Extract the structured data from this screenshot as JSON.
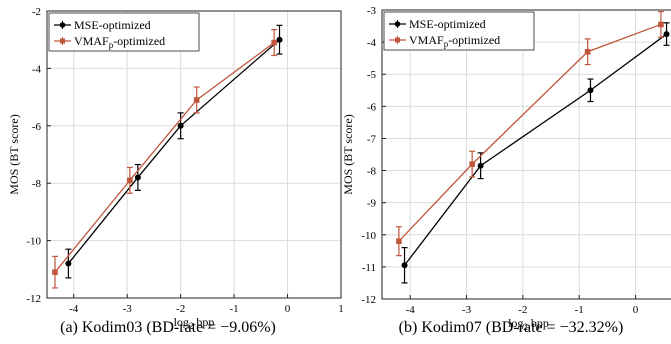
{
  "chart_data": [
    {
      "type": "line",
      "caption": "(a) Kodim03 (BD-rate = −9.06%)",
      "xlabel": "log2 bpp",
      "ylabel": "MOS (BT score)",
      "xlim": [
        -4.5,
        1
      ],
      "ylim": [
        -12,
        -2
      ],
      "xticks": [
        -4,
        -3,
        -2,
        -1,
        0,
        1
      ],
      "yticks": [
        -12,
        -10,
        -8,
        -6,
        -4,
        -2
      ],
      "grid": true,
      "legend": "top-left",
      "series": [
        {
          "name": "MSE-optimized",
          "color": "#000000",
          "marker": "circle",
          "x": [
            -4.1,
            -2.8,
            -2.0,
            -0.15
          ],
          "y": [
            -10.8,
            -7.8,
            -6.0,
            -3.0
          ],
          "err": [
            0.5,
            0.45,
            0.45,
            0.5
          ]
        },
        {
          "name": "VMAF_p-optimized",
          "color": "#c0573d",
          "marker": "square",
          "x": [
            -4.35,
            -2.95,
            -1.7,
            -0.25
          ],
          "y": [
            -11.1,
            -7.9,
            -5.1,
            -3.1
          ],
          "err": [
            0.55,
            0.45,
            0.45,
            0.45
          ]
        }
      ]
    },
    {
      "type": "line",
      "caption": "(b) Kodim07 (BD-rate = −32.32%)",
      "xlabel": "log2 bpp",
      "ylabel": "MOS (BT score)",
      "xlim": [
        -4.5,
        0.7
      ],
      "ylim": [
        -12,
        -3
      ],
      "xticks": [
        -4,
        -3,
        -2,
        -1,
        0
      ],
      "yticks": [
        -12,
        -11,
        -10,
        -9,
        -8,
        -7,
        -6,
        -5,
        -4,
        -3
      ],
      "grid": true,
      "legend": "top-left",
      "series": [
        {
          "name": "MSE-optimized",
          "color": "#000000",
          "marker": "circle",
          "x": [
            -4.1,
            -2.75,
            -0.8,
            0.55
          ],
          "y": [
            -10.95,
            -7.85,
            -5.5,
            -3.75
          ],
          "err": [
            0.55,
            0.4,
            0.35,
            0.35
          ]
        },
        {
          "name": "VMAF_p-optimized",
          "color": "#c0573d",
          "marker": "square",
          "x": [
            -4.2,
            -2.9,
            -0.85,
            0.45
          ],
          "y": [
            -10.2,
            -7.8,
            -4.3,
            -3.45
          ],
          "err": [
            0.45,
            0.4,
            0.4,
            0.4
          ]
        }
      ]
    }
  ]
}
